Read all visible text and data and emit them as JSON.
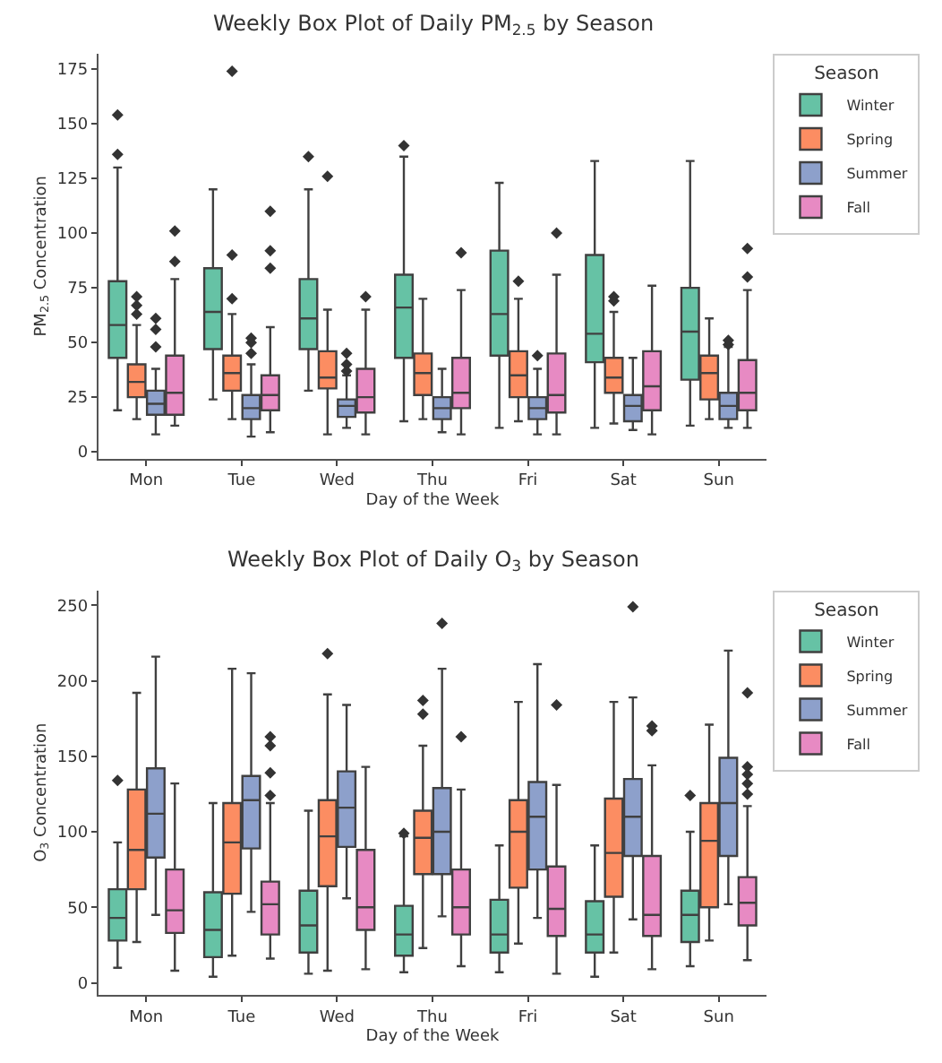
{
  "chart_data": [
    {
      "type": "box",
      "title": "Weekly Box Plot of Daily PM$_{2.5}$ by Season",
      "xlabel": "Day of the Week",
      "ylabel": "PM$_{2.5}$ Concentration",
      "legend_title": "Season",
      "legend": "top right",
      "marker": "diamond",
      "categories": [
        "Mon",
        "Tue",
        "Wed",
        "Thu",
        "Fri",
        "Sat",
        "Sun"
      ],
      "ylim": [
        -3,
        182
      ],
      "yticks": [
        0,
        25,
        50,
        75,
        100,
        125,
        150,
        175
      ],
      "series": [
        {
          "name": "Winter",
          "color": "#66c2a5",
          "boxes": [
            {
              "low": 19,
              "q1": 43,
              "median": 58,
              "q3": 78,
              "high": 130,
              "outliers": [
                136,
                154
              ]
            },
            {
              "low": 24,
              "q1": 47,
              "median": 64,
              "q3": 84,
              "high": 120
            },
            {
              "low": 28,
              "q1": 47,
              "median": 61,
              "q3": 79,
              "high": 120,
              "outliers": [
                135
              ]
            },
            {
              "low": 14,
              "q1": 43,
              "median": 66,
              "q3": 81,
              "high": 135,
              "outliers": [
                140
              ]
            },
            {
              "low": 11,
              "q1": 44,
              "median": 63,
              "q3": 92,
              "high": 123
            },
            {
              "low": 11,
              "q1": 41,
              "median": 54,
              "q3": 90,
              "high": 133
            },
            {
              "low": 12,
              "q1": 33,
              "median": 55,
              "q3": 75,
              "high": 133
            }
          ]
        },
        {
          "name": "Spring",
          "color": "#fc8d62",
          "boxes": [
            {
              "low": 15,
              "q1": 25,
              "median": 32,
              "q3": 40,
              "high": 58,
              "outliers": [
                63,
                67,
                71
              ]
            },
            {
              "low": 15,
              "q1": 28,
              "median": 36,
              "q3": 44,
              "high": 63,
              "outliers": [
                70,
                90,
                174
              ]
            },
            {
              "low": 8,
              "q1": 29,
              "median": 34,
              "q3": 46,
              "high": 65,
              "outliers": [
                126
              ]
            },
            {
              "low": 15,
              "q1": 26,
              "median": 36,
              "q3": 45,
              "high": 70
            },
            {
              "low": 14,
              "q1": 25,
              "median": 35,
              "q3": 46,
              "high": 70,
              "outliers": [
                78
              ]
            },
            {
              "low": 13,
              "q1": 27,
              "median": 34,
              "q3": 43,
              "high": 64,
              "outliers": [
                69,
                71
              ]
            },
            {
              "low": 15,
              "q1": 24,
              "median": 36,
              "q3": 44,
              "high": 61
            }
          ]
        },
        {
          "name": "Summer",
          "color": "#8da0cb",
          "boxes": [
            {
              "low": 8,
              "q1": 17,
              "median": 22,
              "q3": 28,
              "high": 38,
              "outliers": [
                48,
                56,
                61
              ]
            },
            {
              "low": 7,
              "q1": 15,
              "median": 20,
              "q3": 26,
              "high": 40,
              "outliers": [
                45,
                50,
                52
              ]
            },
            {
              "low": 11,
              "q1": 16,
              "median": 21,
              "q3": 24,
              "high": 35,
              "outliers": [
                37,
                40,
                45
              ]
            },
            {
              "low": 9,
              "q1": 15,
              "median": 20,
              "q3": 25,
              "high": 38
            },
            {
              "low": 8,
              "q1": 15,
              "median": 20,
              "q3": 25,
              "high": 38,
              "outliers": [
                44
              ]
            },
            {
              "low": 10,
              "q1": 14,
              "median": 21,
              "q3": 26,
              "high": 43
            },
            {
              "low": 11,
              "q1": 15,
              "median": 21,
              "q3": 27,
              "high": 48,
              "outliers": [
                49,
                51
              ]
            }
          ]
        },
        {
          "name": "Fall",
          "color": "#e78ac3",
          "boxes": [
            {
              "low": 12,
              "q1": 17,
              "median": 27,
              "q3": 44,
              "high": 79,
              "outliers": [
                87,
                101
              ]
            },
            {
              "low": 9,
              "q1": 19,
              "median": 26,
              "q3": 35,
              "high": 57,
              "outliers": [
                84,
                92,
                110
              ]
            },
            {
              "low": 8,
              "q1": 18,
              "median": 25,
              "q3": 38,
              "high": 65,
              "outliers": [
                71
              ]
            },
            {
              "low": 8,
              "q1": 20,
              "median": 27,
              "q3": 43,
              "high": 74,
              "outliers": [
                91
              ]
            },
            {
              "low": 8,
              "q1": 18,
              "median": 26,
              "q3": 45,
              "high": 81,
              "outliers": [
                100
              ]
            },
            {
              "low": 8,
              "q1": 19,
              "median": 30,
              "q3": 46,
              "high": 76
            },
            {
              "low": 11,
              "q1": 19,
              "median": 27,
              "q3": 42,
              "high": 74,
              "outliers": [
                80,
                93
              ]
            }
          ]
        }
      ]
    },
    {
      "type": "box",
      "title": "Weekly Box Plot of Daily O$_{3}$ by Season",
      "xlabel": "Day of the Week",
      "ylabel": "O$_{3}$ Concentration",
      "legend_title": "Season",
      "legend": "top right",
      "marker": "diamond",
      "categories": [
        "Mon",
        "Tue",
        "Wed",
        "Thu",
        "Fri",
        "Sat",
        "Sun"
      ],
      "ylim": [
        -8,
        260
      ],
      "yticks": [
        0,
        50,
        100,
        150,
        200,
        250
      ],
      "series": [
        {
          "name": "Winter",
          "color": "#66c2a5",
          "boxes": [
            {
              "low": 10,
              "q1": 28,
              "median": 43,
              "q3": 62,
              "high": 93,
              "outliers": [
                134
              ]
            },
            {
              "low": 4,
              "q1": 17,
              "median": 35,
              "q3": 60,
              "high": 119
            },
            {
              "low": 6,
              "q1": 20,
              "median": 38,
              "q3": 61,
              "high": 114
            },
            {
              "low": 7,
              "q1": 18,
              "median": 32,
              "q3": 51,
              "high": 97,
              "outliers": [
                99
              ]
            },
            {
              "low": 7,
              "q1": 20,
              "median": 32,
              "q3": 55,
              "high": 91
            },
            {
              "low": 4,
              "q1": 20,
              "median": 32,
              "q3": 54,
              "high": 91
            },
            {
              "low": 11,
              "q1": 27,
              "median": 45,
              "q3": 61,
              "high": 100,
              "outliers": [
                124
              ]
            }
          ]
        },
        {
          "name": "Spring",
          "color": "#fc8d62",
          "boxes": [
            {
              "low": 27,
              "q1": 62,
              "median": 88,
              "q3": 128,
              "high": 192
            },
            {
              "low": 18,
              "q1": 59,
              "median": 93,
              "q3": 119,
              "high": 208
            },
            {
              "low": 8,
              "q1": 64,
              "median": 97,
              "q3": 121,
              "high": 191,
              "outliers": [
                218
              ]
            },
            {
              "low": 23,
              "q1": 72,
              "median": 96,
              "q3": 114,
              "high": 157,
              "outliers": [
                178,
                187
              ]
            },
            {
              "low": 26,
              "q1": 63,
              "median": 100,
              "q3": 121,
              "high": 186
            },
            {
              "low": 20,
              "q1": 57,
              "median": 86,
              "q3": 122,
              "high": 186
            },
            {
              "low": 28,
              "q1": 50,
              "median": 94,
              "q3": 119,
              "high": 171
            }
          ]
        },
        {
          "name": "Summer",
          "color": "#8da0cb",
          "boxes": [
            {
              "low": 45,
              "q1": 83,
              "median": 112,
              "q3": 142,
              "high": 216
            },
            {
              "low": 47,
              "q1": 89,
              "median": 121,
              "q3": 137,
              "high": 205
            },
            {
              "low": 56,
              "q1": 90,
              "median": 116,
              "q3": 140,
              "high": 184
            },
            {
              "low": 44,
              "q1": 72,
              "median": 100,
              "q3": 129,
              "high": 208,
              "outliers": [
                238
              ]
            },
            {
              "low": 43,
              "q1": 75,
              "median": 110,
              "q3": 133,
              "high": 211
            },
            {
              "low": 42,
              "q1": 84,
              "median": 110,
              "q3": 135,
              "high": 189,
              "outliers": [
                249
              ]
            },
            {
              "low": 52,
              "q1": 84,
              "median": 119,
              "q3": 149,
              "high": 220
            }
          ]
        },
        {
          "name": "Fall",
          "color": "#e78ac3",
          "boxes": [
            {
              "low": 8,
              "q1": 33,
              "median": 48,
              "q3": 75,
              "high": 132
            },
            {
              "low": 16,
              "q1": 32,
              "median": 52,
              "q3": 67,
              "high": 119,
              "outliers": [
                124,
                139,
                157,
                163
              ]
            },
            {
              "low": 9,
              "q1": 35,
              "median": 50,
              "q3": 88,
              "high": 143
            },
            {
              "low": 11,
              "q1": 32,
              "median": 50,
              "q3": 75,
              "high": 128,
              "outliers": [
                163
              ]
            },
            {
              "low": 6,
              "q1": 31,
              "median": 49,
              "q3": 77,
              "high": 131,
              "outliers": [
                184
              ]
            },
            {
              "low": 9,
              "q1": 31,
              "median": 45,
              "q3": 84,
              "high": 144,
              "outliers": [
                167,
                170
              ]
            },
            {
              "low": 15,
              "q1": 38,
              "median": 53,
              "q3": 70,
              "high": 117,
              "outliers": [
                125,
                132,
                138,
                143,
                192
              ]
            }
          ]
        }
      ]
    }
  ]
}
